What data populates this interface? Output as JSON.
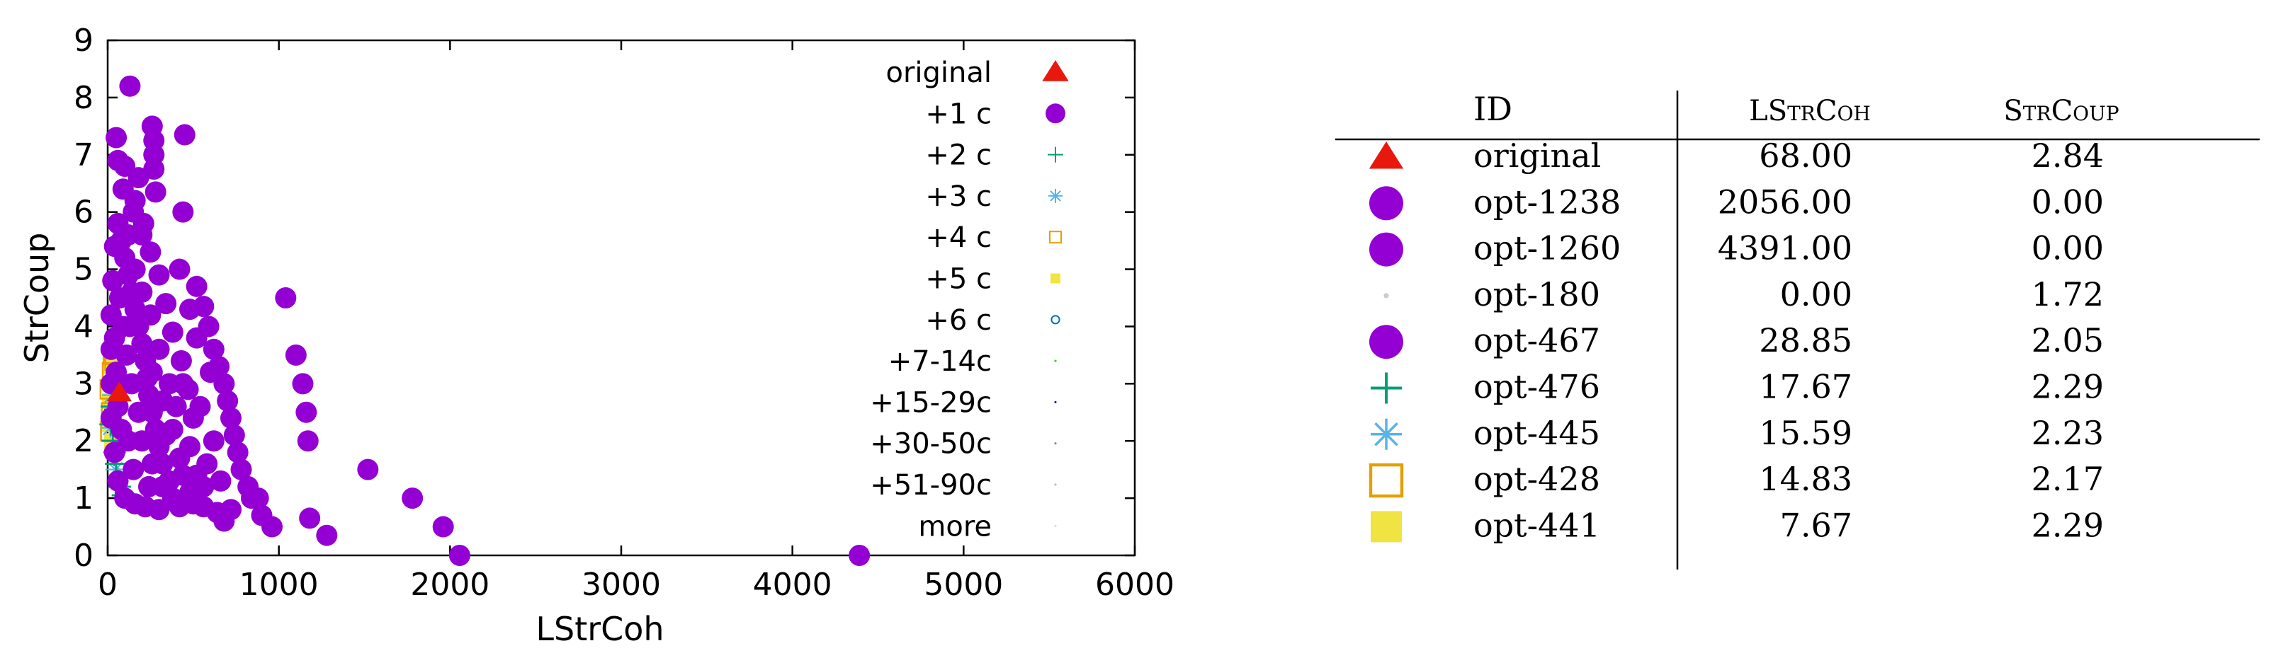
{
  "chart_data": [
    {
      "type": "scatter",
      "xlabel": "LStrCoh",
      "ylabel": "StrCoup",
      "xlim": [
        0,
        6000
      ],
      "ylim": [
        0,
        9
      ],
      "xticks": [
        "0",
        "1000",
        "2000",
        "3000",
        "4000",
        "5000",
        "6000"
      ],
      "yticks": [
        "0",
        "1",
        "2",
        "3",
        "4",
        "5",
        "6",
        "7",
        "8",
        "9"
      ],
      "grid": false,
      "legend_position": "top-right",
      "legend": [
        {
          "label": "original",
          "symbol": "triangle",
          "color": "#e8180e"
        },
        {
          "label": "+1 c",
          "symbol": "circle",
          "color": "#9400d3"
        },
        {
          "label": "+2 c",
          "symbol": "plus",
          "color": "#009e73"
        },
        {
          "label": "+3 c",
          "symbol": "star",
          "color": "#56b4e9"
        },
        {
          "label": "+4 c",
          "symbol": "open-square",
          "color": "#e69f00"
        },
        {
          "label": "+5 c",
          "symbol": "square",
          "color": "#f0e442"
        },
        {
          "label": "+6 c",
          "symbol": "open-circle",
          "color": "#0072b2"
        },
        {
          "label": "+7-14c",
          "symbol": "dot",
          "color": "#22dd22"
        },
        {
          "label": "+15-29c",
          "symbol": "dot",
          "color": "#1010e0"
        },
        {
          "label": "+30-50c",
          "symbol": "dot",
          "color": "#888888"
        },
        {
          "label": "+51-90c",
          "symbol": "dot",
          "color": "#bbbbbb"
        },
        {
          "label": "more",
          "symbol": "dot",
          "color": "#dddddd"
        }
      ],
      "series": [
        {
          "name": "original",
          "symbol": "triangle",
          "color": "#e8180e",
          "points": [
            [
              68,
              2.84
            ]
          ]
        },
        {
          "name": "+1 c",
          "symbol": "circle",
          "color": "#9400d3",
          "points": [
            [
              130,
              8.2
            ],
            [
              260,
              7.5
            ],
            [
              270,
              7.25
            ],
            [
              270,
              7.0
            ],
            [
              270,
              6.75
            ],
            [
              450,
              7.35
            ],
            [
              50,
              7.3
            ],
            [
              60,
              6.9
            ],
            [
              100,
              6.8
            ],
            [
              180,
              6.6
            ],
            [
              280,
              6.35
            ],
            [
              440,
              6.0
            ],
            [
              150,
              6.0
            ],
            [
              200,
              5.6
            ],
            [
              420,
              5.0
            ],
            [
              520,
              4.7
            ],
            [
              560,
              4.35
            ],
            [
              590,
              4.0
            ],
            [
              620,
              3.6
            ],
            [
              650,
              3.3
            ],
            [
              680,
              3.0
            ],
            [
              700,
              2.7
            ],
            [
              720,
              2.4
            ],
            [
              740,
              2.1
            ],
            [
              760,
              1.8
            ],
            [
              780,
              1.5
            ],
            [
              820,
              1.2
            ],
            [
              880,
              1.0
            ],
            [
              1040,
              4.5
            ],
            [
              1100,
              3.5
            ],
            [
              1140,
              3.0
            ],
            [
              1160,
              2.5
            ],
            [
              1170,
              2.0
            ],
            [
              1520,
              1.5
            ],
            [
              1780,
              1.0
            ],
            [
              1960,
              0.5
            ],
            [
              2056,
              0.0
            ],
            [
              4391,
              0.0
            ],
            [
              1180,
              0.65
            ],
            [
              1280,
              0.35
            ],
            [
              960,
              0.5
            ],
            [
              680,
              0.6
            ],
            [
              640,
              0.75
            ],
            [
              560,
              0.85
            ],
            [
              500,
              0.9
            ],
            [
              420,
              0.85
            ],
            [
              380,
              1.0
            ],
            [
              360,
              1.3
            ],
            [
              320,
              1.6
            ],
            [
              300,
              1.9
            ],
            [
              280,
              2.2
            ],
            [
              260,
              2.5
            ],
            [
              240,
              2.8
            ],
            [
              230,
              3.1
            ],
            [
              220,
              3.4
            ],
            [
              200,
              3.7
            ],
            [
              180,
              4.0
            ],
            [
              160,
              4.3
            ],
            [
              140,
              4.6
            ],
            [
              120,
              4.9
            ],
            [
              100,
              5.2
            ],
            [
              80,
              5.5
            ],
            [
              60,
              5.8
            ],
            [
              40,
              5.4
            ],
            [
              30,
              4.8
            ],
            [
              20,
              4.2
            ],
            [
              20,
              3.6
            ],
            [
              20,
              3.0
            ],
            [
              20,
              2.4
            ],
            [
              40,
              1.8
            ],
            [
              60,
              1.3
            ],
            [
              100,
              1.0
            ],
            [
              160,
              0.9
            ],
            [
              220,
              0.85
            ],
            [
              300,
              0.8
            ],
            [
              440,
              1.4
            ],
            [
              480,
              1.9
            ],
            [
              500,
              2.4
            ],
            [
              470,
              2.9
            ],
            [
              430,
              3.4
            ],
            [
              380,
              3.9
            ],
            [
              340,
              4.4
            ],
            [
              300,
              4.9
            ],
            [
              250,
              5.3
            ],
            [
              380,
              2.2
            ],
            [
              420,
              1.7
            ],
            [
              320,
              2.7
            ],
            [
              580,
              1.6
            ],
            [
              620,
              2.0
            ],
            [
              660,
              1.3
            ],
            [
              540,
              2.6
            ],
            [
              600,
              3.2
            ],
            [
              520,
              3.8
            ],
            [
              480,
              4.3
            ],
            [
              120,
              2.0
            ],
            [
              150,
              1.5
            ],
            [
              180,
              2.5
            ],
            [
              140,
              3.0
            ],
            [
              110,
              3.5
            ],
            [
              90,
              4.0
            ],
            [
              70,
              4.5
            ],
            [
              120,
              5.6
            ],
            [
              90,
              6.4
            ],
            [
              160,
              6.2
            ],
            [
              210,
              5.8
            ],
            [
              240,
              1.2
            ],
            [
              320,
              1.2
            ],
            [
              340,
              2.1
            ],
            [
              260,
              3.2
            ],
            [
              200,
              4.6
            ],
            [
              160,
              5.0
            ],
            [
              560,
              1.2
            ],
            [
              720,
              0.8
            ],
            [
              840,
              1.0
            ],
            [
              900,
              0.7
            ],
            [
              480,
              1.1
            ],
            [
              400,
              2.6
            ],
            [
              360,
              3.0
            ],
            [
              300,
              3.6
            ],
            [
              440,
              3.0
            ],
            [
              520,
              1.4
            ],
            [
              260,
              1.6
            ],
            [
              200,
              2.0
            ],
            [
              80,
              2.2
            ],
            [
              60,
              2.6
            ],
            [
              50,
              3.2
            ],
            [
              40,
              3.8
            ],
            [
              130,
              4.0
            ],
            [
              250,
              4.2
            ]
          ]
        },
        {
          "name": "+2 c",
          "symbol": "plus",
          "color": "#009e73",
          "points": [
            [
              17.67,
              2.29
            ],
            [
              30,
              2.0
            ],
            [
              50,
              1.6
            ],
            [
              70,
              1.2
            ],
            [
              90,
              1.05
            ],
            [
              25,
              2.6
            ],
            [
              40,
              1.8
            ]
          ]
        },
        {
          "name": "+3 c",
          "symbol": "star",
          "color": "#56b4e9",
          "points": [
            [
              15.59,
              2.23
            ],
            [
              25,
              2.8
            ],
            [
              35,
              3.0
            ],
            [
              45,
              1.5
            ],
            [
              60,
              1.3
            ],
            [
              20,
              2.5
            ]
          ]
        },
        {
          "name": "+4 c",
          "symbol": "open-square",
          "color": "#e69f00",
          "points": [
            [
              14.83,
              2.17
            ],
            [
              20,
              2.5
            ],
            [
              25,
              3.2
            ],
            [
              30,
              3.5
            ],
            [
              40,
              3.4
            ],
            [
              12,
              2.9
            ]
          ]
        },
        {
          "name": "+5 c",
          "symbol": "square",
          "color": "#f0e442",
          "points": [
            [
              7.67,
              2.29
            ],
            [
              15,
              3.0
            ],
            [
              20,
              3.3
            ],
            [
              12,
              2.7
            ],
            [
              30,
              3.6
            ],
            [
              25,
              2.0
            ]
          ]
        },
        {
          "name": "+6 c",
          "symbol": "open-circle",
          "color": "#0072b2",
          "points": [
            [
              10,
              2.6
            ],
            [
              20,
              2.9
            ],
            [
              30,
              3.1
            ],
            [
              55,
              1.4
            ],
            [
              75,
              1.1
            ]
          ]
        },
        {
          "name": "+7-14c",
          "symbol": "dot",
          "color": "#22dd22",
          "points": [
            [
              10,
              2.4
            ],
            [
              30,
              2.2
            ],
            [
              60,
              1.5
            ],
            [
              80,
              1.1
            ],
            [
              100,
              1.0
            ],
            [
              20,
              2.8
            ]
          ]
        },
        {
          "name": "+15-29c",
          "symbol": "dot",
          "color": "#1010e0",
          "points": [
            [
              5,
              2.2
            ],
            [
              40,
              1.6
            ],
            [
              70,
              1.2
            ],
            [
              10,
              2.6
            ],
            [
              60,
              1.35
            ]
          ]
        },
        {
          "name": "+30-50c",
          "symbol": "dot",
          "color": "#888888",
          "points": [
            [
              5,
              2.0
            ],
            [
              50,
              1.4
            ],
            [
              80,
              1.15
            ]
          ]
        },
        {
          "name": "+51-90c",
          "symbol": "dot",
          "color": "#bbbbbb",
          "points": [
            [
              0,
              1.72
            ],
            [
              5,
              1.9
            ],
            [
              60,
              1.25
            ]
          ]
        },
        {
          "name": "more",
          "symbol": "dot",
          "color": "#dddddd",
          "points": [
            [
              0,
              1.8
            ],
            [
              10,
              2.1
            ]
          ]
        }
      ]
    },
    {
      "type": "table",
      "columns": [
        "ID",
        "LStrCoh",
        "StrCoup"
      ],
      "rows": [
        {
          "symbol": "triangle",
          "color": "#e8180e",
          "id": "original",
          "lstrcoh": "68.00",
          "strcoup": "2.84"
        },
        {
          "symbol": "circle",
          "color": "#9400d3",
          "id": "opt-1238",
          "lstrcoh": "2056.00",
          "strcoup": "0.00"
        },
        {
          "symbol": "circle",
          "color": "#9400d3",
          "id": "opt-1260",
          "lstrcoh": "4391.00",
          "strcoup": "0.00"
        },
        {
          "symbol": "dot",
          "color": "#cccccc",
          "id": "opt-180",
          "lstrcoh": "0.00",
          "strcoup": "1.72"
        },
        {
          "symbol": "circle",
          "color": "#9400d3",
          "id": "opt-467",
          "lstrcoh": "28.85",
          "strcoup": "2.05"
        },
        {
          "symbol": "plus",
          "color": "#009e73",
          "id": "opt-476",
          "lstrcoh": "17.67",
          "strcoup": "2.29"
        },
        {
          "symbol": "star",
          "color": "#56b4e9",
          "id": "opt-445",
          "lstrcoh": "15.59",
          "strcoup": "2.23"
        },
        {
          "symbol": "open-square",
          "color": "#e69f00",
          "id": "opt-428",
          "lstrcoh": "14.83",
          "strcoup": "2.17"
        },
        {
          "symbol": "square",
          "color": "#f0e442",
          "id": "opt-441",
          "lstrcoh": "7.67",
          "strcoup": "2.29"
        }
      ]
    }
  ]
}
